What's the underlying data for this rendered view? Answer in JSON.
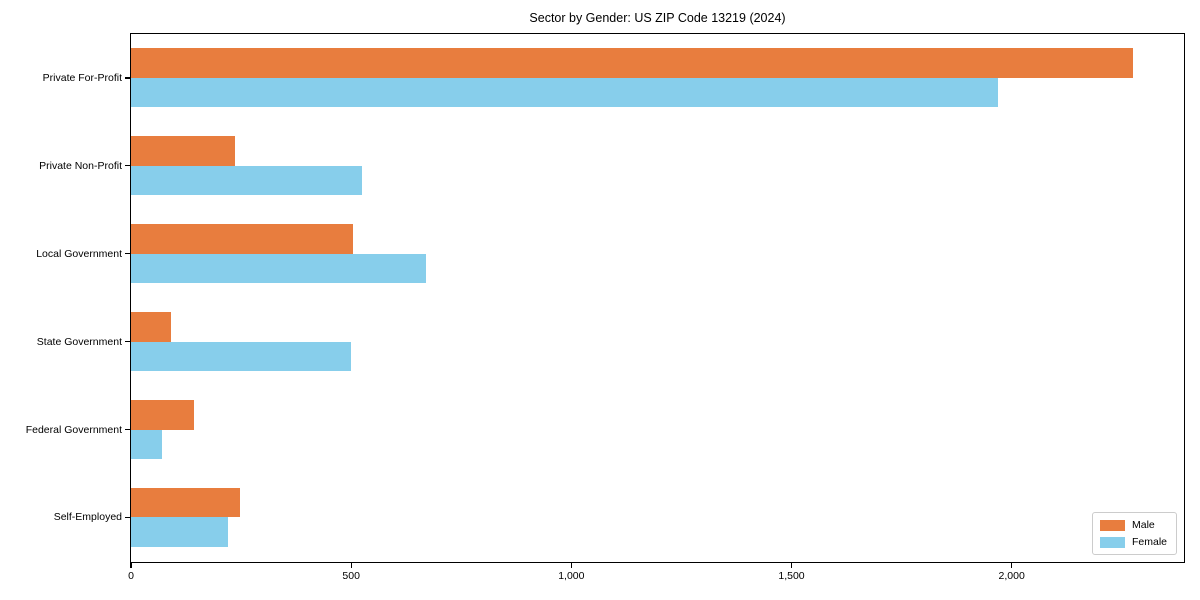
{
  "chart_data": {
    "type": "bar",
    "orientation": "horizontal",
    "title": "Sector by Gender: US ZIP Code 13219 (2024)",
    "categories": [
      "Private For-Profit",
      "Private Non-Profit",
      "Local Government",
      "State Government",
      "Federal Government",
      "Self-Employed"
    ],
    "series": [
      {
        "name": "Male",
        "color": "#e87d3e",
        "values": [
          2275,
          237,
          505,
          90,
          142,
          247
        ]
      },
      {
        "name": "Female",
        "color": "#87ceeb",
        "values": [
          1970,
          525,
          670,
          500,
          70,
          220
        ]
      }
    ],
    "xlabel": "",
    "ylabel": "",
    "xlim": [
      0,
      2390
    ],
    "xticks": {
      "values": [
        0,
        500,
        1000,
        1500,
        2000
      ],
      "labels": [
        "0",
        "500",
        "1,000",
        "1,500",
        "2,000"
      ]
    },
    "grid": false,
    "background": "#ffffff",
    "legend": {
      "position": "lower-right",
      "entries": [
        "Male",
        "Female"
      ]
    }
  }
}
